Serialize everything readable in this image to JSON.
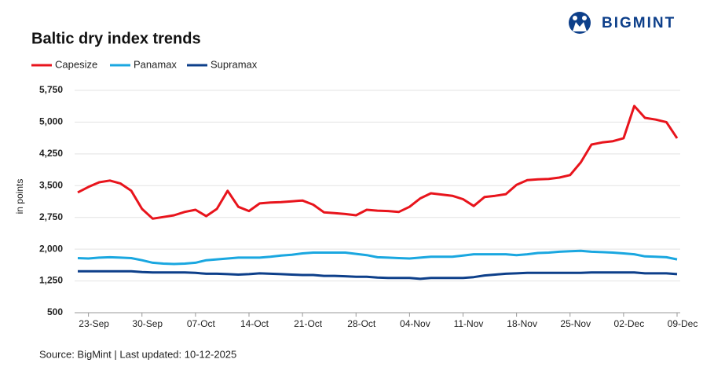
{
  "chart_data": {
    "type": "line",
    "title": "Baltic dry index trends",
    "logo": "BIGMINT",
    "y_label": "in points",
    "source": "Source: BigMint | Last updated: 10-12-2025",
    "categories": [
      null,
      "23-Sep",
      null,
      null,
      null,
      null,
      "30-Sep",
      null,
      null,
      null,
      null,
      "07-Oct",
      null,
      null,
      null,
      null,
      "14-Oct",
      null,
      null,
      null,
      null,
      "21-Oct",
      null,
      null,
      null,
      null,
      "28-Oct",
      null,
      null,
      null,
      null,
      "04-Nov",
      null,
      null,
      null,
      null,
      "11-Nov",
      null,
      null,
      null,
      null,
      "18-Nov",
      null,
      null,
      null,
      null,
      "25-Nov",
      null,
      null,
      null,
      null,
      "02-Dec",
      null,
      null,
      null,
      null,
      "09-Dec"
    ],
    "series": [
      {
        "name": "Capesize",
        "color": "#e8141c",
        "values": [
          3340,
          3470,
          3580,
          3620,
          3550,
          3380,
          2950,
          2720,
          2760,
          2800,
          2880,
          2930,
          2780,
          2950,
          3380,
          3000,
          2900,
          3080,
          3100,
          3110,
          3130,
          3150,
          3050,
          2870,
          2850,
          2830,
          2800,
          2930,
          2910,
          2900,
          2880,
          3000,
          3200,
          3320,
          3290,
          3260,
          3180,
          3020,
          3230,
          3260,
          3300,
          3520,
          3630,
          3650,
          3660,
          3690,
          3750,
          4050,
          4470,
          4520,
          4550,
          4620,
          5380,
          5100,
          5060,
          5000,
          4620
        ]
      },
      {
        "name": "Panamax",
        "color": "#1aa7e0",
        "values": [
          1790,
          1780,
          1800,
          1810,
          1800,
          1790,
          1740,
          1680,
          1660,
          1650,
          1660,
          1680,
          1740,
          1760,
          1780,
          1800,
          1800,
          1800,
          1820,
          1850,
          1870,
          1900,
          1920,
          1920,
          1920,
          1920,
          1890,
          1860,
          1810,
          1800,
          1790,
          1780,
          1800,
          1820,
          1820,
          1820,
          1850,
          1880,
          1880,
          1880,
          1880,
          1860,
          1880,
          1910,
          1920,
          1940,
          1950,
          1960,
          1940,
          1930,
          1920,
          1900,
          1880,
          1830,
          1820,
          1810,
          1760
        ]
      },
      {
        "name": "Supramax",
        "color": "#0d3f8a",
        "values": [
          1480,
          1480,
          1480,
          1480,
          1480,
          1480,
          1460,
          1450,
          1450,
          1450,
          1450,
          1440,
          1420,
          1420,
          1410,
          1400,
          1410,
          1430,
          1420,
          1410,
          1400,
          1390,
          1390,
          1370,
          1370,
          1360,
          1350,
          1350,
          1330,
          1320,
          1320,
          1320,
          1300,
          1320,
          1320,
          1320,
          1320,
          1340,
          1380,
          1400,
          1420,
          1430,
          1440,
          1440,
          1440,
          1440,
          1440,
          1440,
          1450,
          1450,
          1450,
          1450,
          1450,
          1430,
          1430,
          1430,
          1410
        ]
      }
    ],
    "ylim": [
      500,
      5750
    ],
    "yticks": [
      {
        "value": 500,
        "label": "500"
      },
      {
        "value": 1250,
        "label": "1,250"
      },
      {
        "value": 2000,
        "label": "2,000"
      },
      {
        "value": 2750,
        "label": "2,750"
      },
      {
        "value": 3500,
        "label": "3,500"
      },
      {
        "value": 4250,
        "label": "4,250"
      },
      {
        "value": 5000,
        "label": "5,000"
      },
      {
        "value": 5750,
        "label": "5,750"
      }
    ],
    "grid": true
  }
}
